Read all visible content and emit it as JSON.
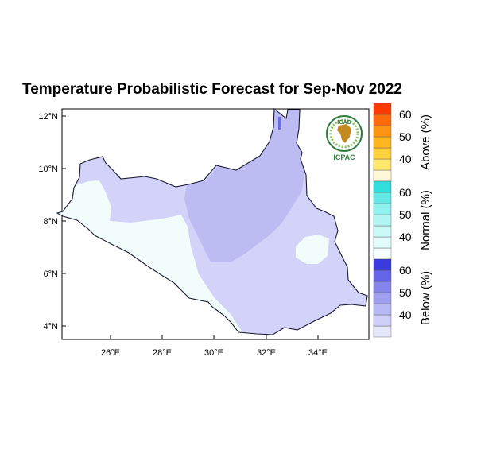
{
  "title": "Temperature Probabilistic Forecast for Sep-Nov 2022",
  "logo": {
    "top_text": "IGAD",
    "bottom_text": "ICPAC"
  },
  "axes": {
    "lat_ticks": [
      "12°N",
      "10°N",
      "8°N",
      "6°N",
      "4°N"
    ],
    "lon_ticks": [
      "26°E",
      "28°E",
      "30°E",
      "32°E",
      "34°E"
    ]
  },
  "colorbar": {
    "groups": [
      {
        "title": "Above (%)",
        "labels": [
          "40",
          "50",
          "60"
        ],
        "colors": [
          "#fff8d6",
          "#ffe86a",
          "#ffd23a",
          "#ffb61f",
          "#ff9412",
          "#ff6a0a",
          "#ff3a00"
        ]
      },
      {
        "title": "Normal (%)",
        "labels": [
          "40",
          "50",
          "60"
        ],
        "colors": [
          "#f4fffe",
          "#e2fcfb",
          "#ccfaf8",
          "#b2f6f4",
          "#90f1ee",
          "#64e9e6",
          "#30dedc"
        ]
      },
      {
        "title": "Below (%)",
        "labels": [
          "40",
          "50",
          "60"
        ],
        "colors": [
          "#e6e6fa",
          "#cfcff7",
          "#b8b8f4",
          "#a0a0f0",
          "#8585ec",
          "#6464e6",
          "#3a3ae0"
        ]
      }
    ]
  },
  "colors": {
    "below_light": "#d3d3f9",
    "below_mid": "#bcbcf3",
    "normal_light": "#f1fcfb",
    "border": "#1a1a33"
  }
}
